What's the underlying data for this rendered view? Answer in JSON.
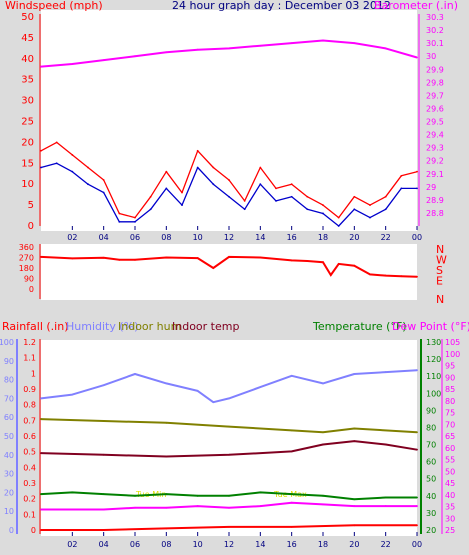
{
  "header": {
    "left_title": "Windspeed (mph)",
    "center_title": "24 hour graph day : December 03 2012",
    "right_title": "Barometer (.in)"
  },
  "colors": {
    "background": "#dcdcdc",
    "plot_bg": "#ffffff",
    "wind": "#ff0000",
    "wind_avg": "#0000cc",
    "baro": "#ff00ff",
    "winddir": "#ff0000",
    "rain": "#ff0000",
    "humidity": "#8080ff",
    "indoor_hum": "#808000",
    "indoor_temp": "#800020",
    "temperature": "#008000",
    "dewpoint": "#ff00ff",
    "ticks": "#000080"
  },
  "chart_data": [
    {
      "type": "line",
      "title": "24 hour graph day : December 03 2012",
      "x_ticks": [
        "02",
        "04",
        "06",
        "08",
        "10",
        "12",
        "14",
        "16",
        "18",
        "20",
        "22",
        "00"
      ],
      "left_axis": {
        "label": "Windspeed (mph)",
        "range": [
          0,
          50
        ],
        "ticks": [
          "0",
          "5",
          "10",
          "15",
          "20",
          "25",
          "30",
          "35",
          "40",
          "45",
          "50"
        ]
      },
      "right_axis": {
        "label": "Barometer (.in)",
        "range": [
          28.7,
          30.3
        ],
        "ticks": [
          "28.8",
          "28.9",
          "29",
          "29.1",
          "29.2",
          "29.3",
          "29.4",
          "29.5",
          "29.6",
          "29.7",
          "29.8",
          "29.9",
          "30",
          "30.1",
          "30.2",
          "30.3"
        ]
      },
      "series": [
        {
          "name": "Windspeed (mph)",
          "axis": "left",
          "color": "#ff0000",
          "x": [
            0,
            1,
            2,
            3,
            4,
            5,
            6,
            7,
            8,
            9,
            10,
            11,
            12,
            13,
            14,
            15,
            16,
            17,
            18,
            19,
            20,
            21,
            22,
            23,
            24
          ],
          "values": [
            18,
            20,
            17,
            14,
            11,
            3,
            2,
            7,
            13,
            8,
            18,
            14,
            11,
            6,
            14,
            9,
            10,
            7,
            5,
            2,
            7,
            5,
            7,
            12,
            13
          ]
        },
        {
          "name": "Windspeed avg (mph)",
          "axis": "left",
          "color": "#0000cc",
          "x": [
            0,
            1,
            2,
            3,
            4,
            5,
            6,
            7,
            8,
            9,
            10,
            11,
            12,
            13,
            14,
            15,
            16,
            17,
            18,
            19,
            20,
            21,
            22,
            23,
            24
          ],
          "values": [
            14,
            15,
            13,
            10,
            8,
            1,
            1,
            4,
            9,
            5,
            14,
            10,
            7,
            4,
            10,
            6,
            7,
            4,
            3,
            0,
            4,
            2,
            4,
            9,
            9
          ]
        },
        {
          "name": "Barometer (.in)",
          "axis": "right",
          "color": "#ff00ff",
          "x": [
            0,
            2,
            4,
            6,
            8,
            10,
            12,
            14,
            16,
            18,
            20,
            22,
            24
          ],
          "values": [
            29.92,
            29.94,
            29.97,
            30.0,
            30.03,
            30.05,
            30.06,
            30.08,
            30.1,
            30.12,
            30.1,
            30.06,
            29.99
          ]
        }
      ]
    },
    {
      "type": "line",
      "title": "Wind direction",
      "left_axis": {
        "range": [
          0,
          360
        ],
        "ticks": [
          "0",
          "90",
          "180",
          "270",
          "360"
        ]
      },
      "right_axis": {
        "ticks": [
          "N",
          "W",
          "S",
          "E",
          "N"
        ]
      },
      "series": [
        {
          "name": "Wind direction",
          "color": "#ff0000",
          "x": [
            0,
            2,
            4,
            5,
            6,
            8,
            10,
            11,
            12,
            14,
            16,
            17,
            18,
            18.5,
            19,
            20,
            21,
            22,
            23,
            24
          ],
          "values": [
            275,
            262,
            268,
            250,
            250,
            270,
            265,
            180,
            275,
            270,
            245,
            240,
            230,
            120,
            215,
            200,
            125,
            115,
            110,
            105
          ]
        }
      ]
    },
    {
      "type": "line",
      "x_ticks": [
        "02",
        "04",
        "06",
        "08",
        "10",
        "12",
        "14",
        "16",
        "18",
        "20",
        "22",
        "00"
      ],
      "axes": {
        "rainfall": {
          "label": "Rainfall (.in)",
          "range": [
            0,
            1.2
          ],
          "ticks": [
            "0",
            "0.1",
            "0.2",
            "0.3",
            "0.4",
            "0.5",
            "0.6",
            "0.7",
            "0.8",
            "0.9",
            "1",
            "1.1",
            "1.2"
          ]
        },
        "humidity": {
          "label": "Humidity (%)",
          "range": [
            0,
            100
          ],
          "ticks": [
            "0",
            "10",
            "20",
            "30",
            "40",
            "50",
            "60",
            "70",
            "80",
            "90",
            "100"
          ]
        },
        "temperature": {
          "label": "Temperature (°F)",
          "range": [
            20,
            130
          ],
          "ticks": [
            "20",
            "30",
            "40",
            "50",
            "60",
            "70",
            "80",
            "90",
            "100",
            "110",
            "120",
            "130"
          ]
        },
        "dewpoint": {
          "label": "Dew Point (°F)",
          "range": [
            25,
            105
          ],
          "ticks": [
            "25",
            "30",
            "35",
            "40",
            "45",
            "50",
            "55",
            "60",
            "65",
            "70",
            "75",
            "80",
            "85",
            "90",
            "95",
            "100",
            "105"
          ]
        }
      },
      "legend": {
        "rainfall": "Rainfall (.in)",
        "humidity": "Humidity (%)",
        "indoor_hum": "Indoor hum",
        "indoor_temp": "Indoor temp",
        "temperature": "Temperature (°F)",
        "dewpoint": "Dew Point (°F)"
      },
      "annotations": [
        "Tue Min",
        "Tue Max"
      ],
      "series": [
        {
          "name": "Humidity (%)",
          "color": "#8080ff",
          "x": [
            0,
            2,
            4,
            6,
            8,
            10,
            11,
            12,
            14,
            16,
            18,
            20,
            22,
            24
          ],
          "values": [
            70,
            72,
            77,
            83,
            78,
            74,
            68,
            70,
            76,
            82,
            78,
            83,
            84,
            85
          ]
        },
        {
          "name": "Indoor temp",
          "color": "#800020",
          "x": [
            0,
            4,
            8,
            12,
            16,
            18,
            20,
            22,
            24
          ],
          "values": [
            65,
            64,
            63,
            64,
            66,
            70,
            72,
            70,
            67
          ]
        },
        {
          "name": "Indoor hum",
          "color": "#808000",
          "x": [
            0,
            4,
            8,
            12,
            16,
            18,
            20,
            24
          ],
          "values": [
            59,
            58,
            57,
            55,
            53,
            52,
            54,
            52
          ]
        },
        {
          "name": "Temperature (°F)",
          "color": "#008000",
          "x": [
            0,
            2,
            4,
            6,
            8,
            10,
            12,
            14,
            16,
            18,
            20,
            22,
            24
          ],
          "values": [
            41,
            42,
            41,
            40,
            41,
            40,
            40,
            42,
            41,
            40,
            38,
            39,
            39
          ]
        },
        {
          "name": "Dew Point (°F)",
          "color": "#ff00ff",
          "x": [
            0,
            4,
            6,
            8,
            10,
            12,
            14,
            16,
            18,
            20,
            22,
            24
          ],
          "values": [
            32,
            32,
            33,
            33,
            34,
            33,
            34,
            36,
            35,
            34,
            34,
            34
          ]
        },
        {
          "name": "Rainfall (.in)",
          "color": "#ff0000",
          "x": [
            0,
            4,
            8,
            12,
            16,
            20,
            24
          ],
          "values": [
            0,
            0,
            0.01,
            0.02,
            0.02,
            0.03,
            0.03
          ]
        }
      ]
    }
  ]
}
